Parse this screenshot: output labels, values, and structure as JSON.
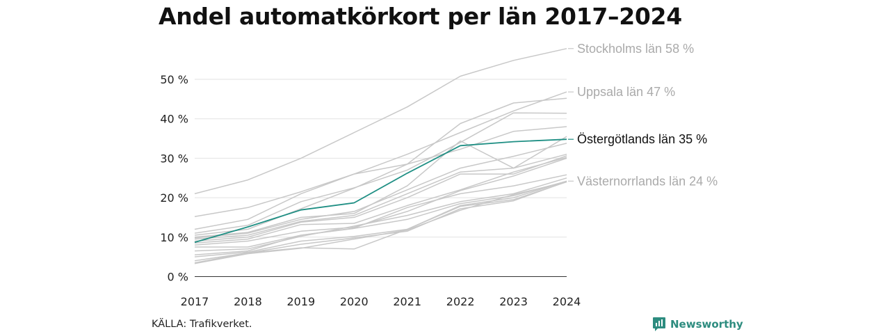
{
  "chart_data": {
    "type": "line",
    "title": "Andel automatkörkort per län 2017–2024",
    "source": "KÄLLA: Trafikverket.",
    "x": [
      "2017",
      "2018",
      "2019",
      "2020",
      "2021",
      "2022",
      "2023",
      "2024"
    ],
    "y_ticks": [
      0,
      10,
      20,
      30,
      40,
      50
    ],
    "y_tick_labels": [
      "0 %",
      "10 %",
      "20 %",
      "30 %",
      "40 %",
      "50 %"
    ],
    "ylim": [
      0,
      60
    ],
    "grid": "horizontal",
    "colors": {
      "highlight": "#1f8f84",
      "background_series": "#c8c8c8",
      "label_muted": "#aaaaaa",
      "label_highlight": "#111111"
    },
    "series": [
      {
        "name": "Stockholms län",
        "values": [
          21,
          24.5,
          30,
          36.5,
          43,
          50.8,
          54.8,
          57.8
        ],
        "label": "Stockholms län 58 %",
        "style": "muted-labeled"
      },
      {
        "name": "Uppsala län",
        "values": [
          15.2,
          17.5,
          21.5,
          26,
          31,
          36.5,
          42,
          46.8
        ],
        "label": "Uppsala län 47 %",
        "style": "muted-labeled"
      },
      {
        "name": "Östergötlands län",
        "values": [
          8.7,
          12.6,
          16.9,
          18.7,
          26.2,
          33.2,
          34.2,
          34.8
        ],
        "label": "Östergötlands län 35 %",
        "style": "highlight"
      },
      {
        "name": "Västernorrlands län",
        "values": [
          3.5,
          6.0,
          7.3,
          7.0,
          12.0,
          18.0,
          20.0,
          24.2
        ],
        "label": "Västernorrlands län 24 %",
        "style": "muted-labeled"
      },
      {
        "values": [
          12,
          14.5,
          21,
          26,
          28.5,
          38.8,
          44,
          45.2
        ],
        "style": "muted"
      },
      {
        "values": [
          11,
          13,
          19,
          22.5,
          27,
          34,
          41.5,
          41.4
        ],
        "style": "muted"
      },
      {
        "values": [
          10.5,
          12,
          17.2,
          22.4,
          28.5,
          32.3,
          36.8,
          38
        ],
        "style": "muted"
      },
      {
        "values": [
          10,
          11.2,
          15,
          16,
          23,
          34.4,
          27.5,
          35.5
        ],
        "style": "muted"
      },
      {
        "values": [
          9.8,
          11.0,
          14.5,
          16.5,
          22,
          27.5,
          30.5,
          33.8
        ],
        "style": "muted"
      },
      {
        "values": [
          9.5,
          10.5,
          14,
          15.5,
          21,
          26.5,
          27.5,
          31
        ],
        "style": "muted"
      },
      {
        "values": [
          9,
          10,
          13.8,
          15,
          20,
          26,
          26,
          30.6
        ],
        "style": "muted"
      },
      {
        "values": [
          8.5,
          9.5,
          13.2,
          13.5,
          18,
          22,
          26.5,
          30.2
        ],
        "style": "muted"
      },
      {
        "values": [
          8,
          9,
          11.5,
          12.5,
          16.5,
          21.8,
          25.5,
          30
        ],
        "style": "muted"
      },
      {
        "values": [
          7.5,
          7.5,
          10.5,
          12.3,
          17.5,
          21,
          23,
          25.8
        ],
        "style": "muted"
      },
      {
        "values": [
          6.5,
          7.0,
          10.2,
          12.8,
          15.5,
          19,
          21,
          25
        ],
        "style": "muted"
      },
      {
        "values": [
          5.5,
          6.5,
          10.5,
          12.2,
          14.5,
          18.5,
          20.5,
          24.2
        ],
        "style": "muted"
      },
      {
        "values": [
          5,
          6.2,
          9,
          10.2,
          12,
          17.8,
          19.5,
          24
        ],
        "style": "muted"
      },
      {
        "values": [
          4,
          6.0,
          8.2,
          9.8,
          11.5,
          17.2,
          19.2,
          24.1
        ],
        "style": "muted"
      },
      {
        "values": [
          3.3,
          5.8,
          7.2,
          9.5,
          11.8,
          16.8,
          20.8,
          24
        ],
        "style": "muted"
      }
    ]
  },
  "branding": {
    "name": "Newsworthy",
    "icon": "newsworthy-chart-bubble-icon",
    "color": "#2d8c7f"
  }
}
